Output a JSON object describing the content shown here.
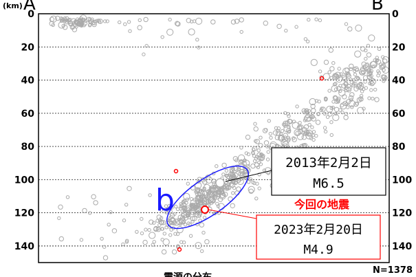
{
  "chart_data": {
    "type": "scatter",
    "title": "",
    "ylabel": "(km)",
    "ylim": [
      150,
      0
    ],
    "yticks": [
      0,
      20,
      40,
      60,
      80,
      100,
      120,
      140
    ],
    "grid": true,
    "corner_left": "A",
    "corner_right": "B",
    "count_label": "N=1378",
    "bottom_partial": "震源の分布",
    "region_label": "b",
    "annotation_label": "今回の地震",
    "events": [
      {
        "date": "2013年2月2日",
        "magnitude": "M6.5",
        "depth": 102
      },
      {
        "date": "2023年2月20日",
        "magnitude": "M4.9",
        "depth": 118
      }
    ],
    "colors": {
      "points": "#aaaaaa",
      "highlight": "#ff0000",
      "ellipse": "#1a1aff",
      "grid": "#333333"
    }
  }
}
